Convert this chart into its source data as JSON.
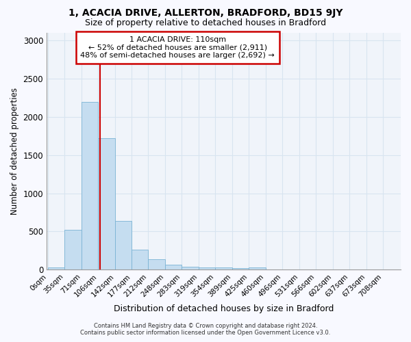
{
  "title": "1, ACACIA DRIVE, ALLERTON, BRADFORD, BD15 9JY",
  "subtitle": "Size of property relative to detached houses in Bradford",
  "xlabel": "Distribution of detached houses by size in Bradford",
  "ylabel": "Number of detached properties",
  "footer_line1": "Contains HM Land Registry data © Crown copyright and database right 2024.",
  "footer_line2": "Contains public sector information licensed under the Open Government Licence v3.0.",
  "annotation_line1": "1 ACACIA DRIVE: 110sqm",
  "annotation_line2": "← 52% of detached houses are smaller (2,911)",
  "annotation_line3": "48% of semi-detached houses are larger (2,692) →",
  "property_sqm": 110,
  "categories": [
    "0sqm",
    "35sqm",
    "71sqm",
    "106sqm",
    "142sqm",
    "177sqm",
    "212sqm",
    "248sqm",
    "283sqm",
    "319sqm",
    "354sqm",
    "389sqm",
    "425sqm",
    "460sqm",
    "496sqm",
    "531sqm",
    "566sqm",
    "602sqm",
    "637sqm",
    "673sqm",
    "708sqm"
  ],
  "bin_edges": [
    0,
    35,
    71,
    106,
    142,
    177,
    212,
    248,
    283,
    319,
    354,
    389,
    425,
    460,
    496,
    531,
    566,
    602,
    637,
    673,
    708
  ],
  "bin_widths": [
    35,
    36,
    35,
    36,
    35,
    35,
    36,
    35,
    36,
    35,
    35,
    36,
    35,
    36,
    35,
    35,
    36,
    35,
    36,
    35,
    35
  ],
  "values": [
    30,
    520,
    2190,
    1720,
    640,
    260,
    135,
    65,
    40,
    30,
    30,
    20,
    30,
    5,
    5,
    3,
    2,
    2,
    1,
    1,
    1
  ],
  "bar_color": "#c5ddf0",
  "bar_edge_color": "#7ab3d4",
  "property_line_color": "#cc0000",
  "annotation_box_edge": "#cc0000",
  "annotation_box_face": "#ffffff",
  "fig_background_color": "#f8f9ff",
  "plot_background_color": "#f0f4fa",
  "grid_color": "#d8e4f0",
  "ylim": [
    0,
    3100
  ],
  "yticks": [
    0,
    500,
    1000,
    1500,
    2000,
    2500,
    3000
  ],
  "title_fontsize": 10,
  "subtitle_fontsize": 9
}
